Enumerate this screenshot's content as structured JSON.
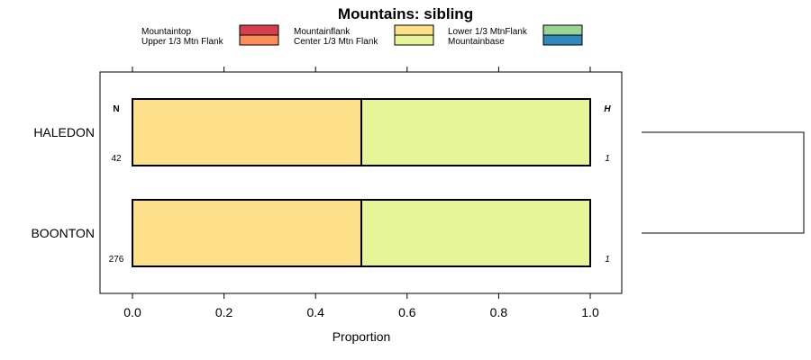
{
  "chart_data": {
    "type": "bar",
    "orientation": "horizontal",
    "stacked": true,
    "title": "Mountains: sibling",
    "xlabel": "Proportion",
    "ylabel": "",
    "xlim": [
      -0.07,
      1.07
    ],
    "x_ticks": [
      0.0,
      0.2,
      0.4,
      0.6,
      0.8,
      1.0
    ],
    "x_tick_labels": [
      "0.0",
      "0.2",
      "0.4",
      "0.6",
      "0.8",
      "1.0"
    ],
    "categories": [
      "HALEDON",
      "BOONTON"
    ],
    "n_header": "N",
    "h_header": "H",
    "n_values": [
      "42",
      "276"
    ],
    "h_values": [
      "1",
      "1"
    ],
    "legend_position": "top",
    "series": [
      {
        "name": "Mountaintop",
        "color": "#d53e4f",
        "values": [
          0,
          0
        ]
      },
      {
        "name": "Upper 1/3 Mtn Flank",
        "color": "#fc8d59",
        "values": [
          0,
          0
        ]
      },
      {
        "name": "Mountainflank",
        "color": "#fee08b",
        "values": [
          0.5,
          0.5
        ]
      },
      {
        "name": "Center 1/3 Mtn Flank",
        "color": "#e6f598",
        "values": [
          0.5,
          0.5
        ]
      },
      {
        "name": "Lower 1/3 MtnFlank",
        "color": "#99d594",
        "values": [
          0,
          0
        ]
      },
      {
        "name": "Mountainbase",
        "color": "#3288bd",
        "values": [
          0,
          0
        ]
      }
    ],
    "dendrogram": true
  }
}
